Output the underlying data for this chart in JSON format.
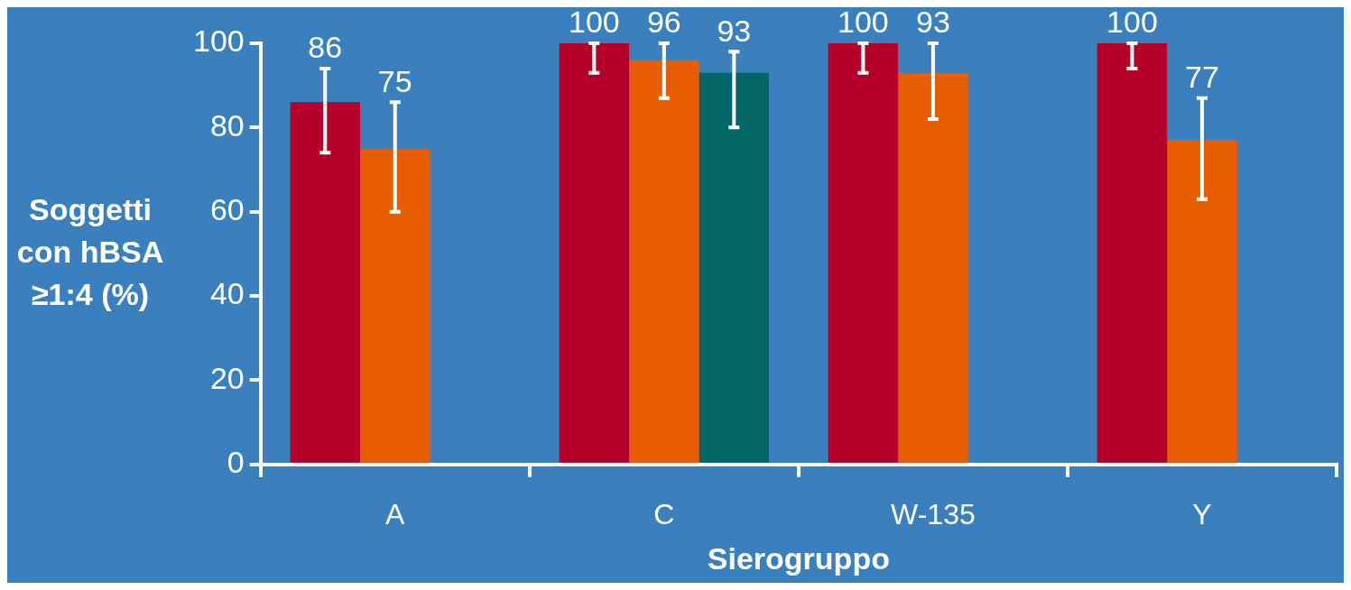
{
  "chart_data": {
    "type": "bar",
    "xlabel": "Sierogruppo",
    "ylabel": "Soggetti con hBSA ≥1:4 (%)",
    "categories": [
      "A",
      "C",
      "W-135",
      "Y"
    ],
    "series": [
      {
        "color": "#b5002a",
        "values": [
          86,
          100,
          100,
          100
        ],
        "errors": [
          [
            74,
            94
          ],
          [
            93,
            100
          ],
          [
            93,
            100
          ],
          [
            94,
            100
          ]
        ]
      },
      {
        "color": "#e85d00",
        "values": [
          75,
          96,
          93,
          77
        ],
        "errors": [
          [
            60,
            86
          ],
          [
            87,
            100
          ],
          [
            82,
            100
          ],
          [
            63,
            87
          ]
        ]
      },
      {
        "color": "#006666",
        "values": [
          null,
          93,
          null,
          null
        ],
        "errors": [
          null,
          [
            80,
            98
          ],
          null,
          null
        ]
      }
    ],
    "ylim": [
      0,
      100
    ],
    "yticks": [
      0,
      20,
      40,
      60,
      80,
      100
    ],
    "grid": false,
    "legend": false,
    "data_labels": true
  }
}
